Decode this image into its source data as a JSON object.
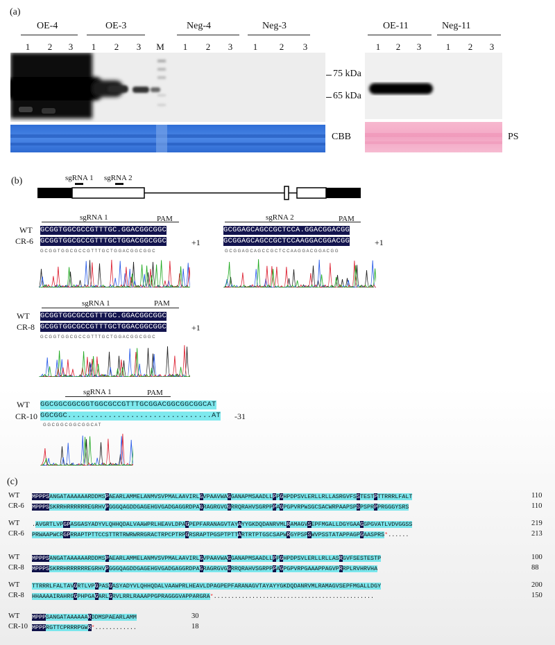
{
  "panel_a": {
    "label": "(a)",
    "groups_left": [
      {
        "name": "OE-4",
        "lanes": [
          "1",
          "2",
          "3"
        ]
      },
      {
        "name": "OE-3",
        "lanes": [
          "1",
          "2",
          "3"
        ]
      },
      {
        "name": "",
        "lanes": [
          "M"
        ]
      },
      {
        "name": "Neg-4",
        "lanes": [
          "1",
          "2",
          "3"
        ]
      },
      {
        "name": "Neg-3",
        "lanes": [
          "1",
          "2",
          "3"
        ]
      }
    ],
    "groups_right": [
      {
        "name": "OE-11",
        "lanes": [
          "1",
          "2",
          "3"
        ]
      },
      {
        "name": "Neg-11",
        "lanes": [
          "1",
          "2",
          "3"
        ]
      }
    ],
    "markers": [
      "75 kDa",
      "65 kDa"
    ],
    "stain_left": "CBB",
    "stain_right": "PS"
  },
  "panel_b": {
    "label": "(b)",
    "gene_model": {
      "sgrna1": "sgRNA 1",
      "sgrna2": "sgRNA 2"
    },
    "alignments": [
      {
        "id": "cr6-s1",
        "guide": "sgRNA 1",
        "pam": "PAM",
        "wt_label": "WT",
        "wt": "GCGGTGGCGCCGTTTGC.GGACGGCGGC",
        "mut_label": "CR-6",
        "mut": "GCGGTGGCGCCGTTTGCTGGACGGCGGC",
        "change": "+1",
        "chrom": "G C G G T G G C G C C G T T T G C T G G A C G G C G G C"
      },
      {
        "id": "cr6-s2",
        "guide": "sgRNA 2",
        "pam": "PAM",
        "wt": "GCGGAGCAGCCGCTCCA.GGACGGACGG",
        "mut": "GCGGAGCAGCCGCTCCAAGGACGGACGG",
        "change": "+1",
        "chrom": "G C G G A G C A G C C G C T C C A A G G A C G G A C G G"
      },
      {
        "id": "cr8",
        "guide": "sgRNA 1",
        "pam": "PAM",
        "wt_label": "WT",
        "wt": "GCGGTGGCGCCGTTTGC.GGACGGCGGC",
        "mut_label": "CR-8",
        "mut": "GCGGTGGCGCCGTTTGCTGGACGGCGGC",
        "change": "+1",
        "chrom": "G C G G T G G C G C C G T T T G C T G G A C G G C G G C"
      },
      {
        "id": "cr10",
        "guide": "sgRNA 1",
        "pam": "PAM",
        "wt_label": "WT",
        "wt": "GGCGGCGGCGGTGGCGCCGTTTGCGGACGGCGGCGGCAT",
        "mut_label": "CR-10",
        "mut": "GGCGGC................................AT",
        "change": "-31",
        "chrom": "G G C G G C G G C G G C A T"
      }
    ]
  },
  "panel_c": {
    "label": "(c)",
    "blocks": [
      {
        "rows": [
          {
            "name": "WT",
            "seq": "MPPPSANGATAAAAAARDDMSPAEARLAMMELANMVSVPMALAAVIRLGVPAAVWAGGANAPMSAADLLPPGHPDPSVLERLLRLLASRGVFSSTESTPTTRRRLFALT",
            "end": "110"
          },
          {
            "name": "CR-6",
            "seq": "MPPPSSKRRHRRRRRREGRHVPGGGQAGDDGAGEHGVGADGAGGRDPAGRAGRGVGGRRQRAHVSGRPPPAGPGPVRPWSGCSACWRPAAPSPSPSPRPPRGGGYSRS",
            "end": "110"
          }
        ]
      },
      {
        "rows": [
          {
            "name": "WT",
            "seq": ".AVGRTLVPGPASGASYADYVLQHHQDALVAAWPRLHEAVLDPAGPEPFARANAGVTAYAYYGKDQDANRVMLRAMAGVSEPFMGALLDGYGAAGGPGVATLVDVGGSS",
            "end": "219"
          },
          {
            "name": "CR-6",
            "seq": "PRWAAPWCRGPRRAPTPTTCCSTTRTRWRWRRGRACTRPCPTRPGRSRAPTPGSPTPTTARTRTPTGSCSAPWRGYPSPSWVPSSTATAPPAGPGAASPRS*......",
            "end": "213"
          }
        ]
      },
      {
        "rows": [
          {
            "name": "WT",
            "seq": "MPPPSANGATAAAAAARDDMSPAEARLAMMELANMVSVPMALAAVIRLGVPAAVWAGGANAPMSAADLLPPGHPDPSVLERLLRLLASRGVFSESTESTP",
            "end": "100"
          },
          {
            "name": "CR-8",
            "seq": "MPPPSSKRRHRRRRRREGRHVPGGGQAGDDGAGEHGVGADGAGGRDPAGRAGRGVGGRRQRAHVSGRPPPAGPGPVRPGAAAPPAGVPRRPLRVHRVHA",
            "end": "88"
          }
        ]
      },
      {
        "rows": [
          {
            "name": "WT",
            "seq": "TTRRRLFALTAVGRTLVPGPASGASYADYVLQHHQDALVAAWPRLHEAVLDPAGPEPFARANAGVTAYAYYGKDQDANRVMLRAMAGVSEPFMGALLDGY",
            "end": "200"
          },
          {
            "name": "CR-8",
            "seq": "HHAAAAIRAHRGGPHPGAGARLGRVLRRLRAAAPPGPRAGGGVAPPARGRA*..............................................",
            "end": "150"
          }
        ]
      },
      {
        "rows": [
          {
            "name": "WT",
            "seq": "MPPPSANGATAAAAAARDDMSPAEARLAMM",
            "end": "30"
          },
          {
            "name": "CR-10",
            "seq": "MPPPRGTTCPRRRPGWR*............",
            "end": "18"
          }
        ]
      }
    ]
  }
}
